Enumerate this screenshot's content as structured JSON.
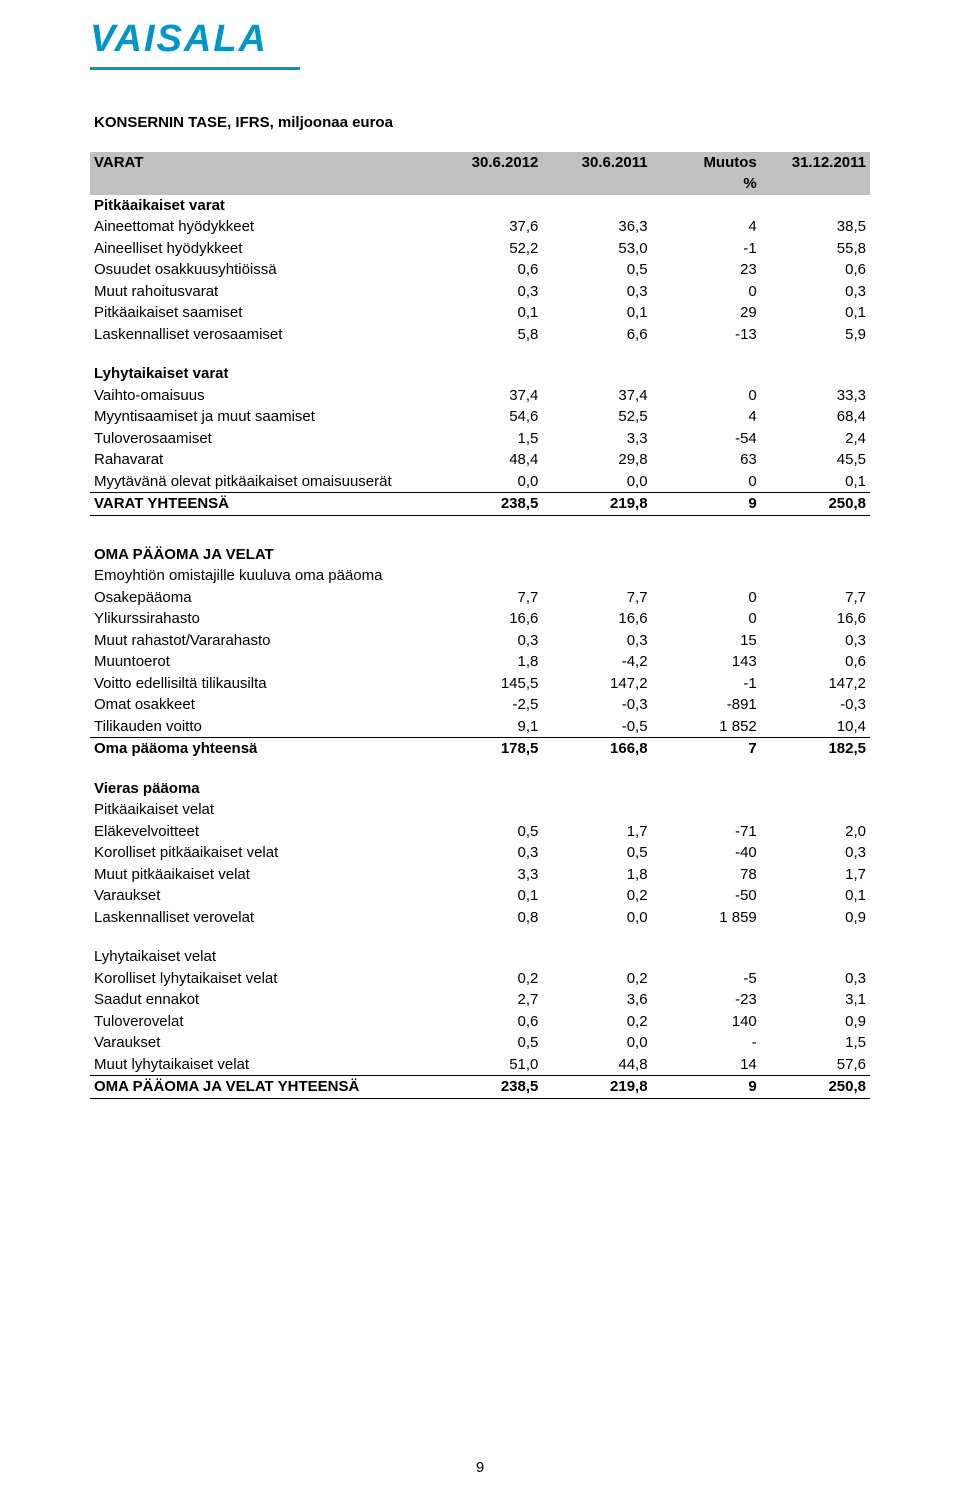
{
  "logo_text": "VAISALA",
  "page_number": "9",
  "table1": {
    "title": "KONSERNIN TASE, IFRS, miljoonaa euroa",
    "header": {
      "c0": "VARAT",
      "c1": "30.6.2012",
      "c2": "30.6.2011",
      "c3": "Muutos %",
      "c3_top": "Muutos",
      "c3_bottom": "%",
      "c4": "31.12.2011"
    },
    "sections": [
      {
        "label": "Pitkäaikaiset varat",
        "rows": [
          {
            "l": "Aineettomat hyödykkeet",
            "a": "37,6",
            "b": "36,3",
            "c": "4",
            "d": "38,5"
          },
          {
            "l": "Aineelliset hyödykkeet",
            "a": "52,2",
            "b": "53,0",
            "c": "-1",
            "d": "55,8"
          },
          {
            "l": "Osuudet osakkuusyhtiöissä",
            "a": "0,6",
            "b": "0,5",
            "c": "23",
            "d": "0,6"
          },
          {
            "l": "Muut rahoitusvarat",
            "a": "0,3",
            "b": "0,3",
            "c": "0",
            "d": "0,3"
          },
          {
            "l": "Pitkäaikaiset saamiset",
            "a": "0,1",
            "b": "0,1",
            "c": "29",
            "d": "0,1"
          },
          {
            "l": "Laskennalliset verosaamiset",
            "a": "5,8",
            "b": "6,6",
            "c": "-13",
            "d": "5,9"
          }
        ]
      },
      {
        "label": "Lyhytaikaiset varat",
        "rows": [
          {
            "l": "Vaihto-omaisuus",
            "a": "37,4",
            "b": "37,4",
            "c": "0",
            "d": "33,3"
          },
          {
            "l": "Myyntisaamiset ja muut saamiset",
            "a": "54,6",
            "b": "52,5",
            "c": "4",
            "d": "68,4"
          },
          {
            "l": "Tuloverosaamiset",
            "a": "1,5",
            "b": "3,3",
            "c": "-54",
            "d": "2,4"
          },
          {
            "l": "Rahavarat",
            "a": "48,4",
            "b": "29,8",
            "c": "63",
            "d": "45,5"
          },
          {
            "l": "Myytävänä olevat pitkäaikaiset omaisuuserät",
            "a": "0,0",
            "b": "0,0",
            "c": "0",
            "d": "0,1"
          }
        ]
      }
    ],
    "total": {
      "l": "VARAT YHTEENSÄ",
      "a": "238,5",
      "b": "219,8",
      "c": "9",
      "d": "250,8"
    }
  },
  "table2": {
    "title": "OMA PÄÄOMA JA VELAT",
    "sub1_label": "Emoyhtiön omistajille kuuluva oma pääoma",
    "equity_rows": [
      {
        "l": "Osakepääoma",
        "a": "7,7",
        "b": "7,7",
        "c": "0",
        "d": "7,7"
      },
      {
        "l": "Ylikurssirahasto",
        "a": "16,6",
        "b": "16,6",
        "c": "0",
        "d": "16,6"
      },
      {
        "l": "Muut rahastot/Vararahasto",
        "a": "0,3",
        "b": "0,3",
        "c": "15",
        "d": "0,3"
      },
      {
        "l": "Muuntoerot",
        "a": "1,8",
        "b": "-4,2",
        "c": "143",
        "d": "0,6"
      },
      {
        "l": "Voitto edellisiltä tilikausilta",
        "a": "145,5",
        "b": "147,2",
        "c": "-1",
        "d": "147,2"
      },
      {
        "l": "Omat osakkeet",
        "a": "-2,5",
        "b": "-0,3",
        "c": "-891",
        "d": "-0,3"
      },
      {
        "l": "Tilikauden voitto",
        "a": "9,1",
        "b": "-0,5",
        "c": "1 852",
        "d": "10,4"
      }
    ],
    "equity_total": {
      "l": "Oma pääoma yhteensä",
      "a": "178,5",
      "b": "166,8",
      "c": "7",
      "d": "182,5"
    },
    "liab_label": "Vieras pääoma",
    "noncurrent_label": "Pitkäaikaiset velat",
    "noncurrent_rows": [
      {
        "l": "Eläkevelvoitteet",
        "a": "0,5",
        "b": "1,7",
        "c": "-71",
        "d": "2,0"
      },
      {
        "l": "Korolliset pitkäaikaiset velat",
        "a": "0,3",
        "b": "0,5",
        "c": "-40",
        "d": "0,3"
      },
      {
        "l": "Muut pitkäaikaiset velat",
        "a": "3,3",
        "b": "1,8",
        "c": "78",
        "d": "1,7"
      },
      {
        "l": "Varaukset",
        "a": "0,1",
        "b": "0,2",
        "c": "-50",
        "d": "0,1"
      },
      {
        "l": "Laskennalliset verovelat",
        "a": "0,8",
        "b": "0,0",
        "c": "1 859",
        "d": "0,9"
      }
    ],
    "current_label": "Lyhytaikaiset velat",
    "current_rows": [
      {
        "l": "Korolliset lyhytaikaiset velat",
        "a": "0,2",
        "b": "0,2",
        "c": "-5",
        "d": "0,3"
      },
      {
        "l": "Saadut ennakot",
        "a": "2,7",
        "b": "3,6",
        "c": "-23",
        "d": "3,1"
      },
      {
        "l": "Tuloverovelat",
        "a": "0,6",
        "b": "0,2",
        "c": "140",
        "d": "0,9"
      },
      {
        "l": "Varaukset",
        "a": "0,5",
        "b": "0,0",
        "c": "-",
        "d": "1,5"
      },
      {
        "l": "Muut lyhytaikaiset velat",
        "a": "51,0",
        "b": "44,8",
        "c": "14",
        "d": "57,6"
      }
    ],
    "grand_total": {
      "l": "OMA PÄÄOMA JA VELAT YHTEENSÄ",
      "a": "238,5",
      "b": "219,8",
      "c": "9",
      "d": "250,8"
    }
  },
  "style": {
    "brand_color": "#0095c8",
    "header_bg": "#c0c0c0",
    "text_color": "#000000",
    "font_size_pt": 11
  }
}
